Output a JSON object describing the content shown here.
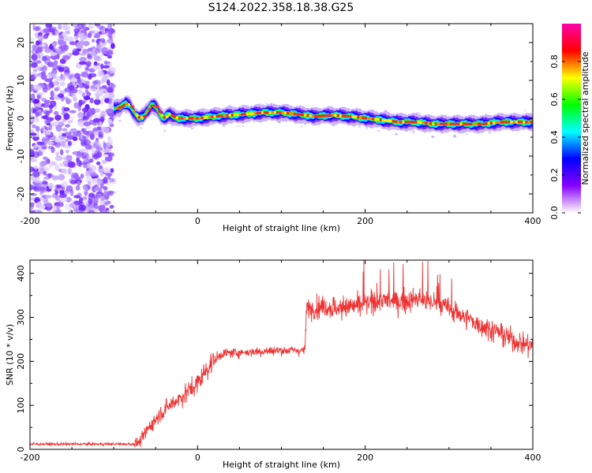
{
  "title": "S124.2022.358.18.38.G25",
  "chart_data": [
    {
      "type": "heatmap",
      "xlabel": "Height of straight line (km)",
      "ylabel": "Frequency (Hz)",
      "xlim": [
        -200,
        400
      ],
      "ylim": [
        -25,
        25
      ],
      "x_ticks": [
        -200,
        0,
        200,
        400
      ],
      "y_ticks": [
        -20,
        -10,
        0,
        10,
        20
      ],
      "noise_region_x": [
        -200,
        -100
      ],
      "colorbar": {
        "label": "Normalized spectral amplitude",
        "range": [
          0,
          1
        ],
        "ticks": [
          0.0,
          0.2,
          0.4,
          0.6,
          0.8
        ],
        "colors": [
          "#ffffff",
          "#8800ff",
          "#0000ff",
          "#00ffff",
          "#00ff00",
          "#ffff00",
          "#ff0000",
          "#ff00aa"
        ]
      },
      "ridge": {
        "x": [
          -100,
          -92,
          -85,
          -80,
          -75,
          -70,
          -65,
          -60,
          -55,
          -50,
          -45,
          -40,
          -35,
          -30,
          -25,
          -20,
          -10,
          0,
          20,
          50,
          80,
          100,
          120,
          140,
          160,
          180,
          200,
          220,
          240,
          260,
          280,
          300,
          320,
          340,
          360,
          380,
          400
        ],
        "freq": [
          2.5,
          3,
          4,
          3,
          1,
          0,
          0.5,
          2,
          3.5,
          3,
          1,
          0,
          1,
          0.5,
          0,
          0,
          0,
          0,
          0.5,
          1,
          1.5,
          1.5,
          1,
          0.5,
          0.8,
          0.5,
          0,
          -0.5,
          -1,
          -1,
          -1.5,
          -1.5,
          -1.5,
          -1.5,
          -1,
          -1,
          -1
        ]
      }
    },
    {
      "type": "line",
      "xlabel": "Height of straight line (km)",
      "ylabel": "SNR (10 * v/v)",
      "xlim": [
        -200,
        400
      ],
      "ylim": [
        0,
        430
      ],
      "x_ticks": [
        -200,
        0,
        200,
        400
      ],
      "y_ticks": [
        0,
        100,
        200,
        300,
        400
      ],
      "color": "#ee3333",
      "series": [
        {
          "x": [
            -200,
            -150,
            -100,
            -75,
            -68,
            -60,
            -45,
            -30,
            -15,
            0,
            15,
            30,
            50,
            70,
            100,
            120,
            128,
            130,
            150,
            170,
            200,
            220,
            240,
            260,
            280,
            300,
            320,
            340,
            360,
            380,
            400
          ],
          "y": [
            12,
            12,
            12,
            12,
            18,
            45,
            80,
            105,
            125,
            150,
            195,
            218,
            220,
            222,
            225,
            225,
            225,
            320,
            325,
            320,
            330,
            340,
            335,
            340,
            335,
            320,
            300,
            280,
            265,
            245,
            235
          ]
        }
      ]
    }
  ]
}
